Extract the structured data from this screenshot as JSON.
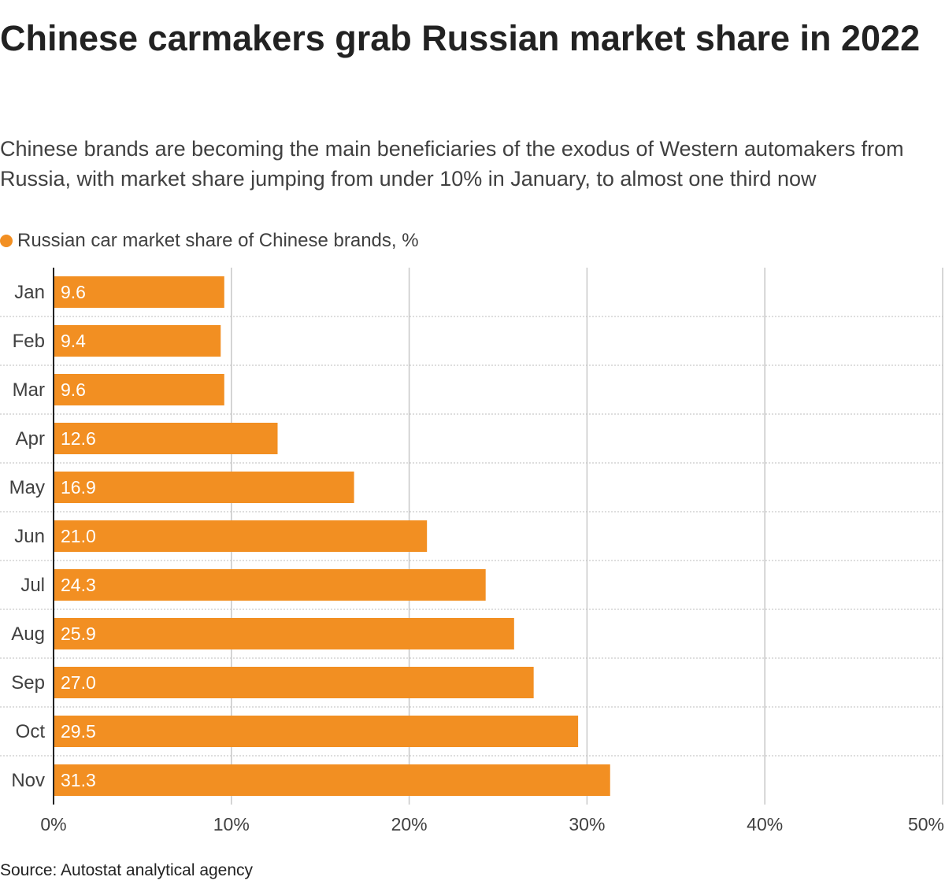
{
  "title": "Chinese carmakers grab Russian market share in 2022",
  "subtitle": "Chinese brands are becoming the main beneficiaries of the exodus of Western automakers from Russia, with market share jumping from under 10% in January, to almost one third now",
  "legend": {
    "label": "Russian car market share of Chinese brands, %",
    "color": "#f28f22"
  },
  "source": "Source: Autostat analytical agency",
  "chart_data": {
    "type": "bar",
    "orientation": "horizontal",
    "categories": [
      "Jan",
      "Feb",
      "Mar",
      "Apr",
      "May",
      "Jun",
      "Jul",
      "Aug",
      "Sep",
      "Oct",
      "Nov"
    ],
    "series": [
      {
        "name": "Russian car market share of Chinese brands, %",
        "values": [
          9.6,
          9.4,
          9.6,
          12.6,
          16.9,
          21.0,
          24.3,
          25.9,
          27.0,
          29.5,
          31.3
        ]
      }
    ],
    "data_labels": [
      "9.6",
      "9.4",
      "9.6",
      "12.6",
      "16.9",
      "21.0",
      "24.3",
      "25.9",
      "27.0",
      "29.5",
      "31.3"
    ],
    "xlim": [
      0,
      50
    ],
    "x_ticks": [
      0,
      10,
      20,
      30,
      40,
      50
    ],
    "x_tick_labels": [
      "0%",
      "10%",
      "20%",
      "30%",
      "40%",
      "50%"
    ],
    "grid": true,
    "legend_position": "top-left",
    "colors": {
      "bar": "#f28f22",
      "grid": "#c8c8c8",
      "row_divider": "#bdbdbd",
      "axis": "#222222"
    }
  }
}
